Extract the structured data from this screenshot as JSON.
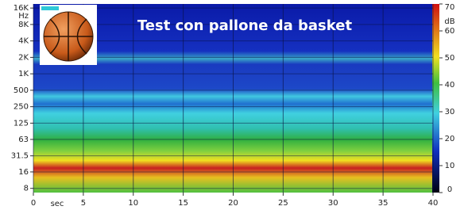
{
  "chart_data": {
    "type": "spectrogram",
    "title": "Test con pallone da basket",
    "x_unit": "sec",
    "y_unit": "Hz",
    "xlim": [
      0,
      40
    ],
    "xticks": [
      0,
      5,
      10,
      15,
      20,
      25,
      30,
      35,
      40
    ],
    "ylim": [
      6.7,
      19000
    ],
    "log_y": true,
    "yticks": [
      {
        "value": 16000,
        "label": "16K"
      },
      {
        "value": 8000,
        "label": "8K"
      },
      {
        "value": 4000,
        "label": "4K"
      },
      {
        "value": 2000,
        "label": "2K"
      },
      {
        "value": 1000,
        "label": "1K"
      },
      500,
      250,
      125,
      63,
      31.5,
      16,
      8
    ],
    "grid": true,
    "colorbar": {
      "label": "dB",
      "clim": [
        0,
        70
      ],
      "ticks": [
        70,
        60,
        50,
        40,
        30,
        20,
        10,
        0
      ]
    }
  }
}
